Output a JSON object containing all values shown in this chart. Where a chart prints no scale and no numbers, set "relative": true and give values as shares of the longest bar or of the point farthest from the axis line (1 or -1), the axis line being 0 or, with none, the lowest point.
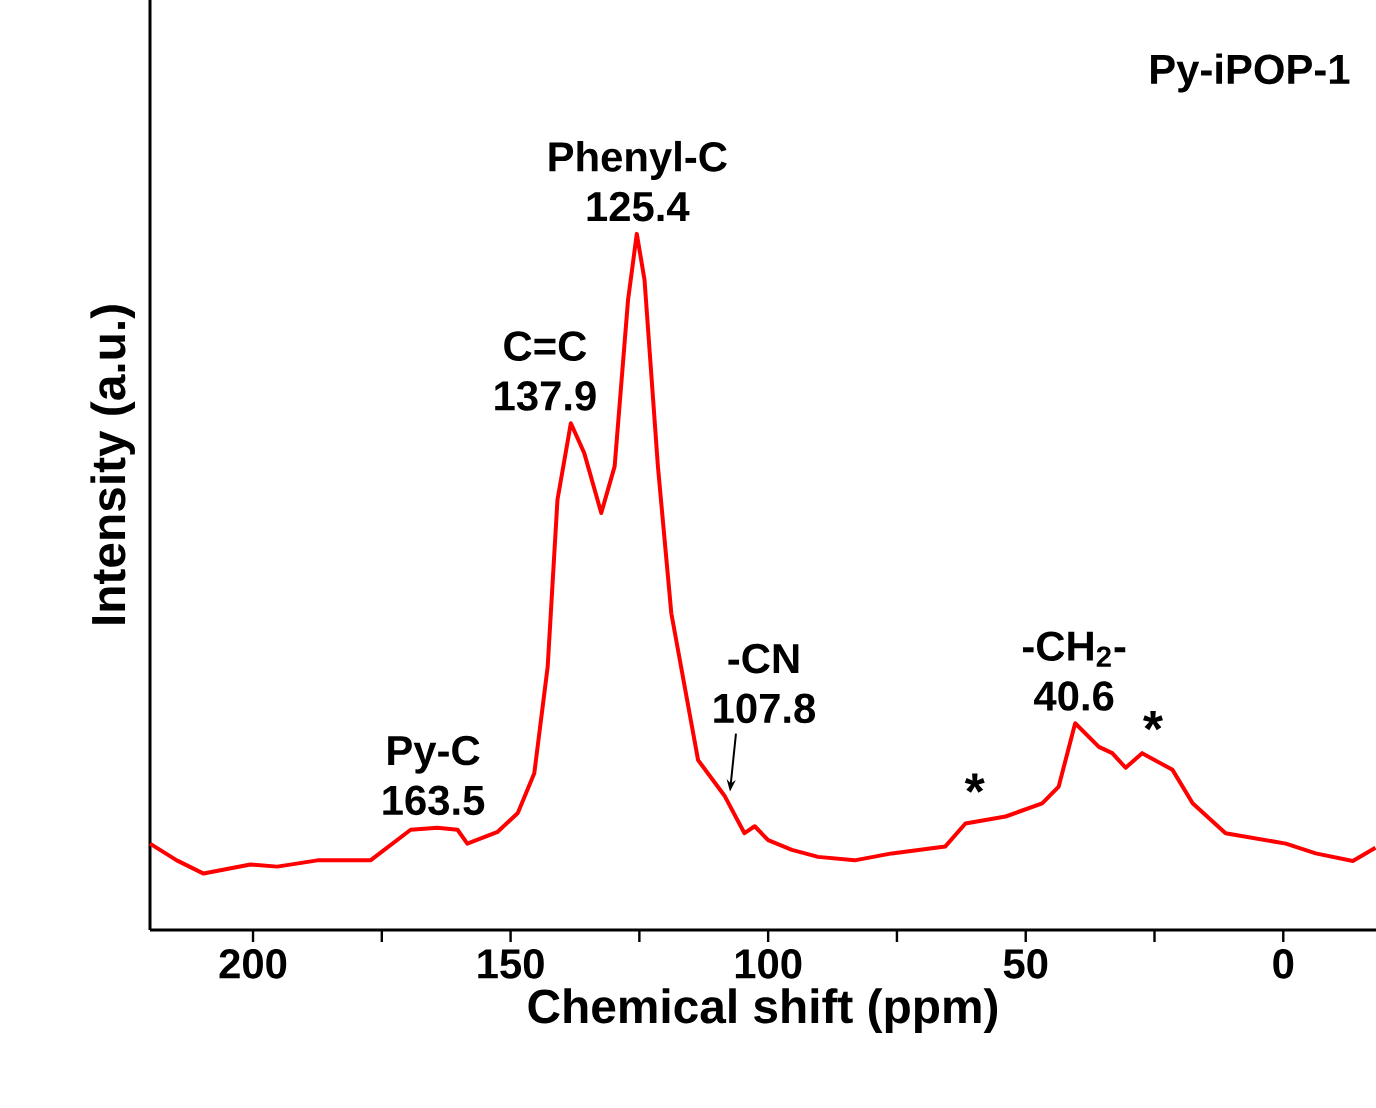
{
  "chart_data": {
    "type": "line",
    "title": "Py-iPOP-1",
    "xlabel": "Chemical shift (ppm)",
    "ylabel": "Intensity (a.u.)",
    "relative": true,
    "xlim": [
      220,
      -18
    ],
    "xticks": [
      200,
      {
        "value": 175,
        "label": null
      },
      150,
      {
        "value": 125,
        "label": null
      },
      100,
      {
        "value": 75,
        "label": null
      },
      50,
      {
        "value": 25,
        "label": null
      },
      0
    ],
    "x": [
      220,
      214.8,
      209.6,
      200.5,
      195.3,
      187.5,
      177.2,
      169.4,
      164.2,
      160.3,
      158.4,
      152.5,
      148.6,
      145.4,
      142.8,
      140.9,
      138.3,
      135.7,
      132.4,
      129.8,
      127.2,
      125.5,
      124.0,
      121.4,
      118.8,
      113.6,
      108.4,
      104.6,
      102.6,
      100.0,
      95.4,
      90.3,
      83.2,
      76.0,
      65.6,
      61.7,
      53.9,
      46.8,
      43.6,
      40.4,
      35.8,
      33.2,
      30.6,
      27.4,
      21.5,
      17.6,
      11.2,
      -0.5,
      -6.3,
      -13.5,
      -17.9
    ],
    "series": [
      {
        "color": "#ff0000",
        "values": [
          0.124,
          0.1,
          0.081,
          0.094,
          0.091,
          0.1,
          0.1,
          0.144,
          0.147,
          0.144,
          0.124,
          0.141,
          0.168,
          0.225,
          0.378,
          0.618,
          0.728,
          0.685,
          0.599,
          0.666,
          0.905,
          1.0,
          0.934,
          0.666,
          0.455,
          0.244,
          0.192,
          0.139,
          0.149,
          0.129,
          0.115,
          0.105,
          0.1,
          0.11,
          0.12,
          0.153,
          0.163,
          0.182,
          0.206,
          0.297,
          0.263,
          0.254,
          0.233,
          0.254,
          0.23,
          0.182,
          0.139,
          0.124,
          0.11,
          0.099,
          0.118
        ]
      }
    ],
    "annotations": [
      {
        "text": "Py-C",
        "x": 163.5,
        "y": 0.147
      },
      {
        "text": "163.5",
        "x": 163.5,
        "y": 0.147
      },
      {
        "text": "C=C",
        "x": 137.9,
        "y": 0.728
      },
      {
        "text": "137.9",
        "x": 137.9,
        "y": 0.728
      },
      {
        "text": "Phenyl-C",
        "x": 125.4,
        "y": 1.0
      },
      {
        "text": "125.4",
        "x": 125.4,
        "y": 1.0
      },
      {
        "text": "-CN",
        "x": 107.8,
        "y": 0.193
      },
      {
        "text": "107.8",
        "x": 107.8,
        "y": 0.193
      },
      {
        "text": "-CH$_{2}$-",
        "x": 40.6,
        "y": 0.297
      },
      {
        "text": "40.6",
        "x": 40.6,
        "y": 0.297
      },
      {
        "text": "*",
        "x": 59.9,
        "y": 0.17
      },
      {
        "text": "*",
        "x": 25.3,
        "y": 0.26
      }
    ]
  }
}
